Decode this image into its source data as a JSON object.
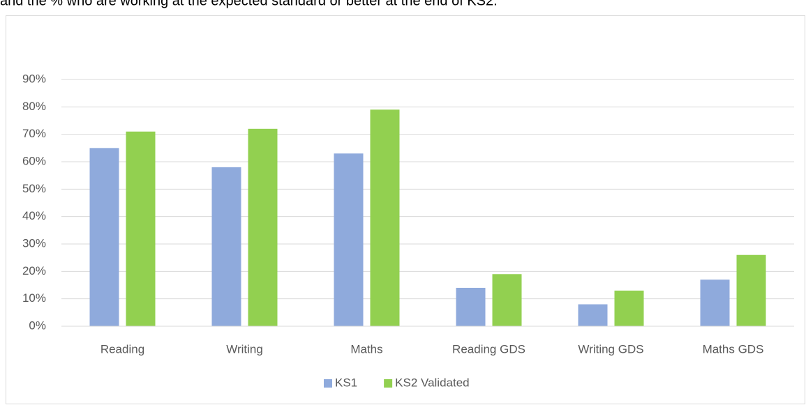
{
  "caption": "and the % who are working at the expected standard or better at the end of KS2.",
  "chart_data": {
    "type": "bar",
    "categories": [
      "Reading",
      "Writing",
      "Maths",
      "Reading GDS",
      "Writing GDS",
      "Maths GDS"
    ],
    "series": [
      {
        "name": "KS1",
        "color": "#8faadc",
        "values": [
          65,
          58,
          63,
          14,
          8,
          17
        ]
      },
      {
        "name": "KS2 Validated",
        "color": "#92d050",
        "values": [
          71,
          72,
          79,
          19,
          13,
          26
        ]
      }
    ],
    "ylim": [
      0,
      90
    ],
    "yticks": [
      {
        "value": 0,
        "label": "0%"
      },
      {
        "value": 10,
        "label": "10%"
      },
      {
        "value": 20,
        "label": "20%"
      },
      {
        "value": 30,
        "label": "30%"
      },
      {
        "value": 40,
        "label": "40%"
      },
      {
        "value": 50,
        "label": "50%"
      },
      {
        "value": 60,
        "label": "60%"
      },
      {
        "value": 70,
        "label": "70%"
      },
      {
        "value": 80,
        "label": "80%"
      },
      {
        "value": 90,
        "label": "90%"
      }
    ],
    "grid": true,
    "legend": "bottom"
  }
}
